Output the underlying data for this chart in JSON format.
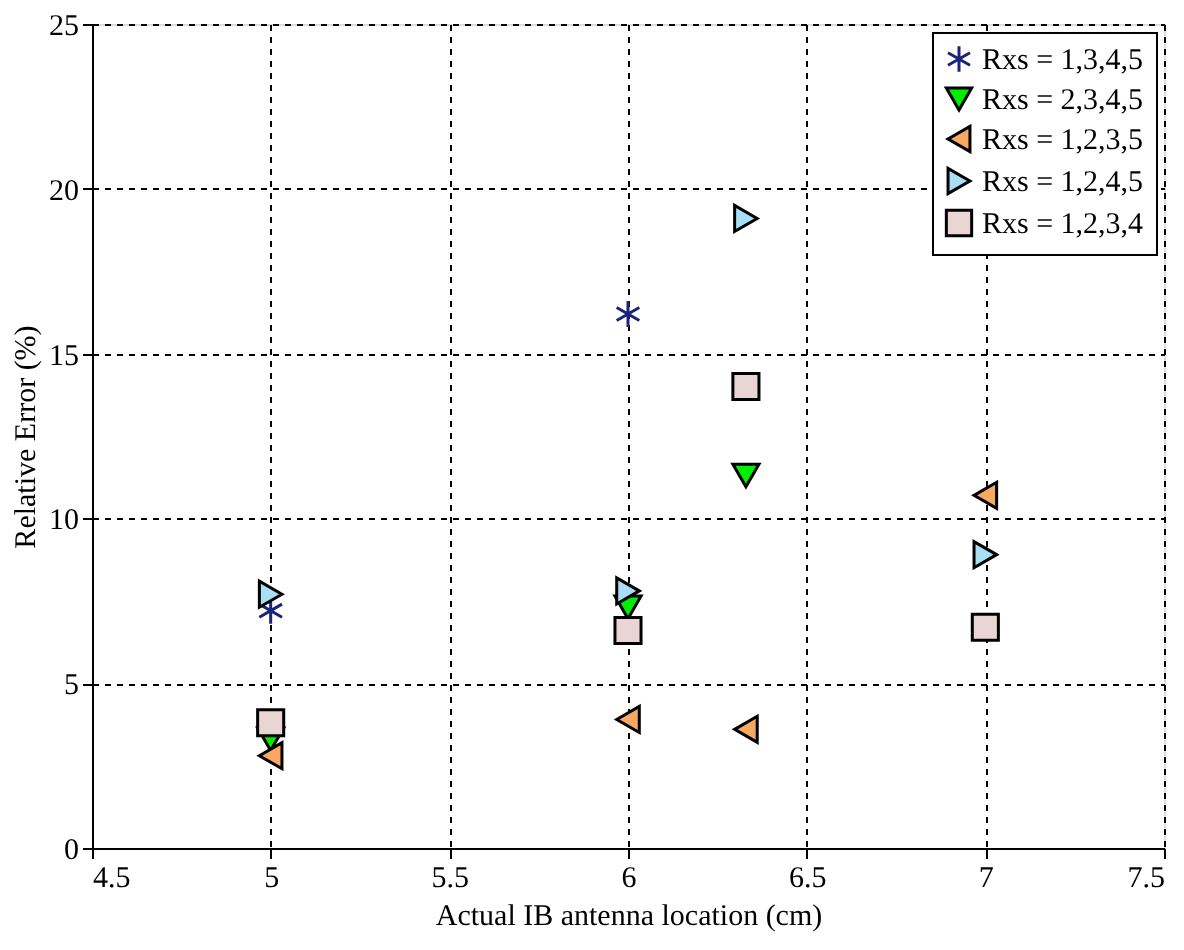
{
  "chart_data": {
    "type": "scatter",
    "xlabel": "Actual IB antenna location (cm)",
    "ylabel": "Relative Error (%)",
    "xlim": [
      4.5,
      7.5
    ],
    "xticks": [
      4.5,
      {
        "value": 5,
        "label": "5"
      },
      5.5,
      {
        "value": 6,
        "label": "6"
      },
      6.5,
      {
        "value": 7,
        "label": "7"
      },
      7.5
    ],
    "ylim": [
      0,
      25
    ],
    "yticks": [
      0,
      5,
      10,
      15,
      20,
      25
    ],
    "grid": true,
    "legend": "top right",
    "series": [
      {
        "name": "Rxs = 1,3,4,5",
        "color": "#1a237e",
        "marker": "cross",
        "x": [
          5,
          6
        ],
        "values": [
          7.2,
          16.2
        ]
      },
      {
        "name": "Rxs = 2,3,4,5",
        "color": "#00ee00",
        "marker": "triangle-down",
        "x": [
          5,
          6,
          6.33
        ],
        "values": [
          3.3,
          7.3,
          11.3
        ]
      },
      {
        "name": "Rxs = 1,2,3,5",
        "color": "#f7a863",
        "marker": "triangle-left",
        "x": [
          5,
          6,
          6.33,
          7
        ],
        "values": [
          2.8,
          3.9,
          3.6,
          10.7
        ]
      },
      {
        "name": "Rxs = 1,2,4,5",
        "color": "#a8dff5",
        "marker": "triangle-right",
        "x": [
          5,
          6,
          6.33,
          7
        ],
        "values": [
          7.7,
          7.8,
          19.1,
          8.9
        ]
      },
      {
        "name": "Rxs = 1,2,3,4",
        "color": "#ead5d5",
        "marker": "square",
        "x": [
          5,
          6,
          6.33,
          7
        ],
        "values": [
          3.8,
          6.6,
          14.0,
          6.7
        ]
      }
    ]
  }
}
